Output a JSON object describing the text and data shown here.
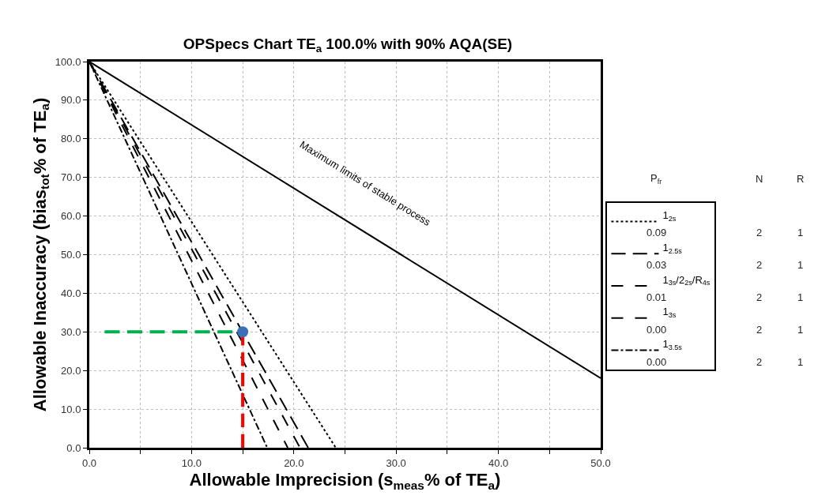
{
  "chart_data": {
    "type": "line",
    "title": "OPSpecs Chart TE$_{a}$ 100.0% with 90% AQA(SE)",
    "xlabel": "Allowable Imprecision (s$_{meas}$% of TE$_{a}$)",
    "ylabel": "Allowable Inaccuracy (bias$_{tot}$% of TE$_{a}$)",
    "xlim": [
      0,
      50
    ],
    "ylim": [
      0,
      100
    ],
    "xticks": [
      {
        "value": 0,
        "label": "0.0"
      },
      {
        "value": 5,
        "label": null
      },
      {
        "value": 10,
        "label": "10.0"
      },
      {
        "value": 15,
        "label": null
      },
      {
        "value": 20,
        "label": "20.0"
      },
      {
        "value": 25,
        "label": null
      },
      {
        "value": 30,
        "label": "30.0"
      },
      {
        "value": 35,
        "label": null
      },
      {
        "value": 40,
        "label": "40.0"
      },
      {
        "value": 45,
        "label": null
      },
      {
        "value": 50,
        "label": "50.0"
      }
    ],
    "yticks": [
      {
        "value": 0,
        "label": "0.0"
      },
      {
        "value": 10,
        "label": "10.0"
      },
      {
        "value": 20,
        "label": "20.0"
      },
      {
        "value": 30,
        "label": "30.0"
      },
      {
        "value": 40,
        "label": "40.0"
      },
      {
        "value": 50,
        "label": "50.0"
      },
      {
        "value": 60,
        "label": "60.0"
      },
      {
        "value": 70,
        "label": "70.0"
      },
      {
        "value": 80,
        "label": "80.0"
      },
      {
        "value": 90,
        "label": "90.0"
      },
      {
        "value": 100,
        "label": "100.0"
      }
    ],
    "grid": true,
    "legend": "right",
    "series": [
      {
        "name": "1$_{2s}$",
        "color": "#000000",
        "line_style": "dotted",
        "x": [
          0,
          24.1
        ],
        "values": [
          100,
          0
        ]
      },
      {
        "name": "1$_{2.5s}$",
        "color": "#000000",
        "line_style": "dashed",
        "x": [
          0,
          21.4
        ],
        "values": [
          100,
          0
        ]
      },
      {
        "name": "1$_{3s}$/2$_{2s}$/R$_{4s}$",
        "color": "#000000",
        "line_style": "longdash",
        "x": [
          0,
          20.6
        ],
        "values": [
          100,
          0
        ]
      },
      {
        "name": "1$_{3s}$",
        "color": "#000000",
        "line_style": "longdash",
        "x": [
          0,
          19.4
        ],
        "values": [
          100,
          0
        ]
      },
      {
        "name": "1$_{3.5s}$",
        "color": "#000000",
        "line_style": "dashdot",
        "x": [
          0,
          17.4
        ],
        "values": [
          100,
          0
        ]
      },
      {
        "color": "#000000",
        "line_style": "solid",
        "x": [
          0,
          50
        ],
        "values": [
          100,
          18
        ]
      },
      {
        "color": "#00b050",
        "line_style": "dashed",
        "x": [
          1.5,
          14
        ],
        "values": [
          30,
          30
        ]
      },
      {
        "color": "#ff0000",
        "line_style": "dashed",
        "x": [
          15,
          15
        ],
        "values": [
          30,
          0
        ]
      },
      {
        "type": "scatter",
        "marker": "circle",
        "color": "#3d6fb6",
        "x": [
          15
        ],
        "values": [
          30
        ]
      }
    ],
    "annotations": [
      {
        "text": "Maximum limits of stable process",
        "x": 27,
        "y": 55.7
      },
      "P$_{fr}$",
      "N",
      "R",
      "0.09",
      "2",
      "1",
      "0.03",
      "2",
      "1",
      "0.01",
      "2",
      "1",
      "0.00",
      "2",
      "1",
      "0.00",
      "2",
      "1"
    ]
  }
}
